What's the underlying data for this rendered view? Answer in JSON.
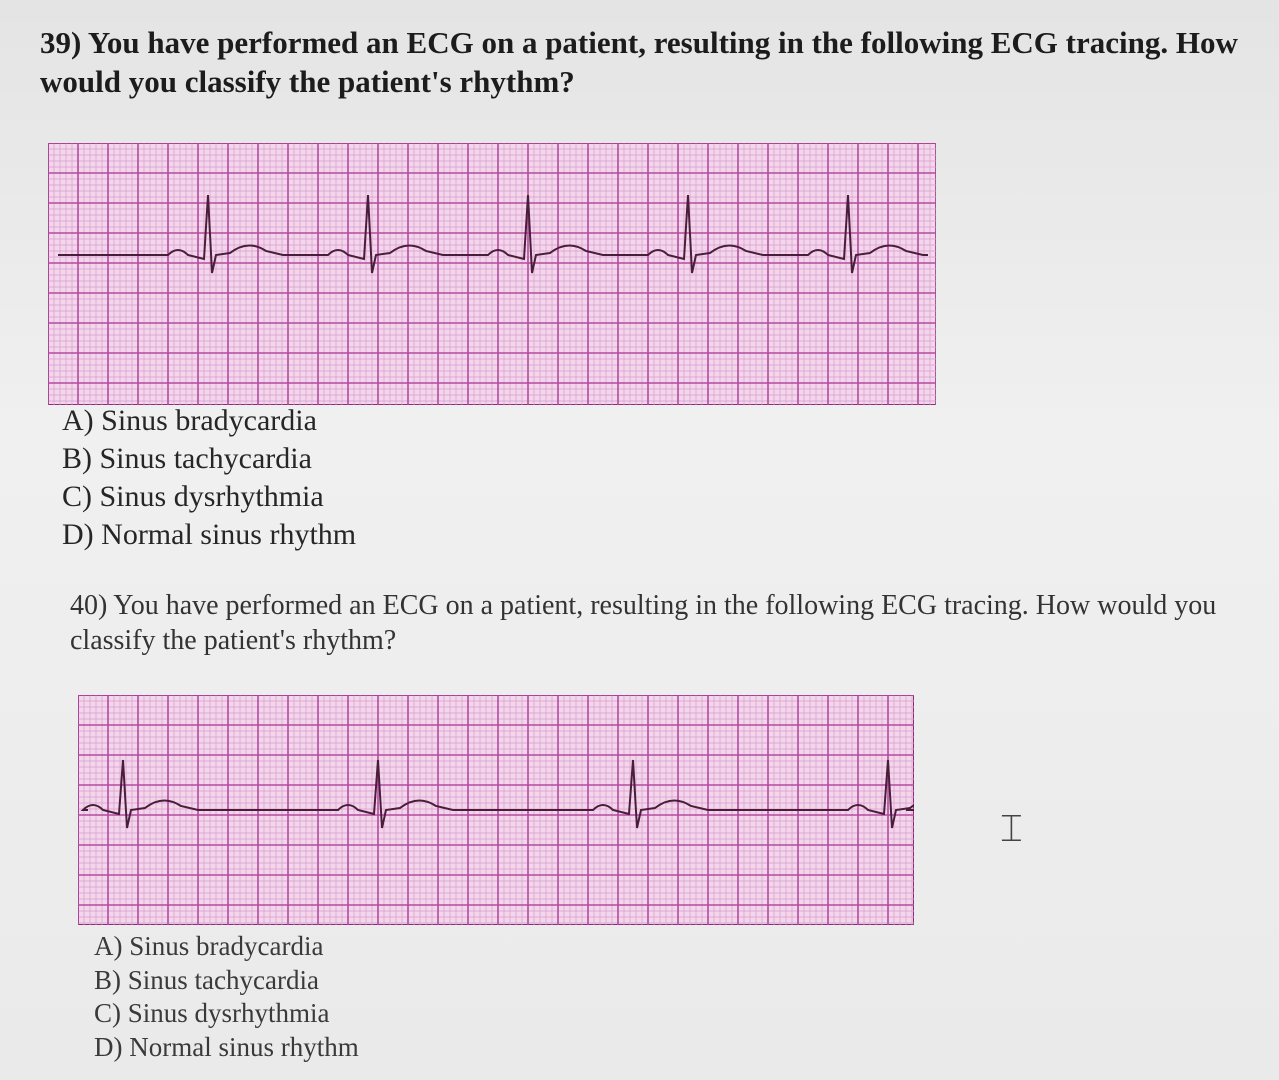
{
  "questions": [
    {
      "text": "39) You have performed an ECG on a patient, resulting in the following ECG tracing. How would you classify the patient's rhythm?",
      "options": [
        "A) Sinus bradycardia",
        "B) Sinus tachycardia",
        "C) Sinus dysrhythmia",
        "D) Normal sinus rhythm"
      ]
    },
    {
      "text": "40) You have performed an ECG on a patient, resulting in the following ECG tracing. How would you classify the patient's rhythm?",
      "options": [
        "A) Sinus bradycardia",
        "B) Sinus tachycardia",
        "C) Sinus dysrhythmia",
        "D) Normal sinus rhythm"
      ]
    }
  ]
}
